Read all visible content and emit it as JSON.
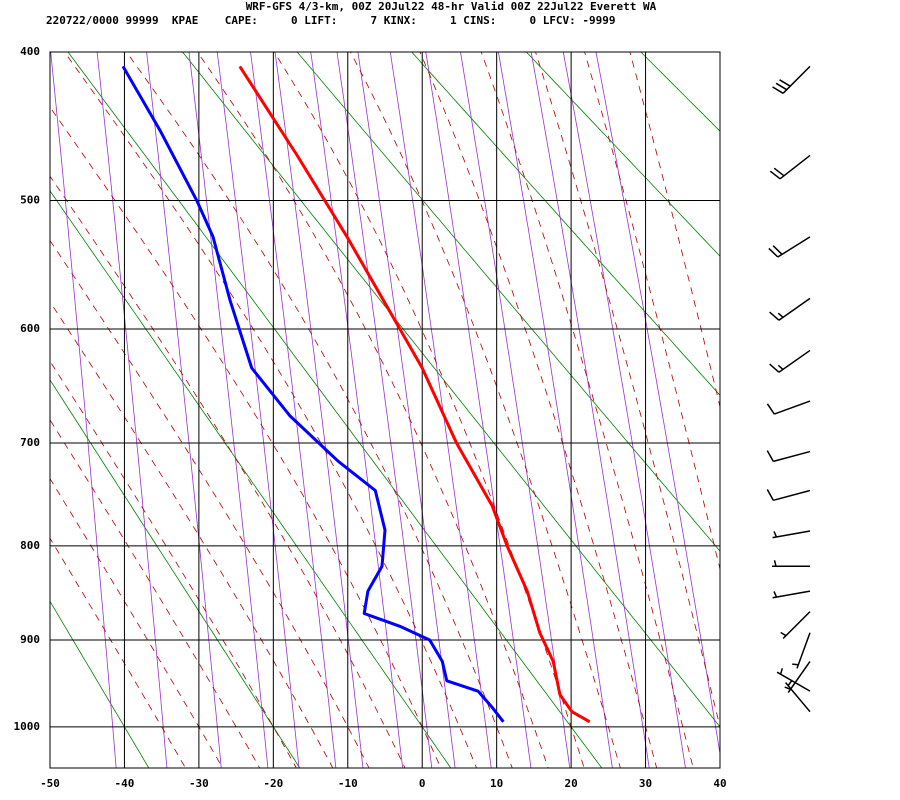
{
  "chart_data": {
    "type": "skewt",
    "title": "WRF-GFS 4/3-km, 00Z 20Jul22 48-hr Valid 00Z 22Jul22 Everett WA",
    "subtitle": "220722/0000 99999  KPAE    CAPE:     0 LIFT:     7 KINX:     1 CINS:     0 LFCV: -9999",
    "xlim": [
      -50,
      40
    ],
    "xticks": [
      -50,
      -40,
      -30,
      -20,
      -10,
      0,
      10,
      20,
      30,
      40
    ],
    "ylim": [
      1050,
      400
    ],
    "yticks": [
      400,
      500,
      600,
      700,
      800,
      900,
      1000
    ],
    "yscale": "stuve",
    "grid": true,
    "series": [
      {
        "color": "#ff0000",
        "pressure": [
          409,
          468,
          527,
          600,
          633,
          700,
          760,
          800,
          847,
          892,
          924,
          962,
          982,
          994
        ],
        "values": [
          -24.5,
          -16.8,
          -10.1,
          -3.0,
          0,
          4.6,
          9.4,
          11.4,
          14.1,
          15.8,
          17.6,
          18.5,
          20.1,
          22.5
        ]
      },
      {
        "color": "#0000ff",
        "pressure": [
          409,
          451,
          500,
          527,
          577,
          633,
          675,
          717,
          745,
          784,
          821,
          847,
          871,
          885,
          900,
          924,
          946,
          958,
          977,
          994
        ],
        "values": [
          -40.2,
          -35.2,
          -30.3,
          -28.1,
          -25.8,
          -22.9,
          -17.8,
          -11.3,
          -6.3,
          -5.0,
          -5.4,
          -7.3,
          -7.8,
          -3.0,
          1.0,
          2.7,
          3.3,
          7.5,
          9.4,
          10.9
        ]
      }
    ],
    "wind": {
      "pressure": [
        409,
        468,
        527,
        575,
        618,
        662,
        708,
        745,
        785,
        821,
        847,
        869,
        892,
        924,
        958,
        982
      ],
      "direction": [
        225,
        232,
        238,
        235,
        235,
        250,
        255,
        255,
        260,
        270,
        260,
        225,
        200,
        215,
        300,
        320
      ],
      "speed": [
        30,
        20,
        20,
        15,
        15,
        10,
        10,
        10,
        5,
        5,
        5,
        5,
        5,
        5,
        5,
        5
      ]
    }
  }
}
